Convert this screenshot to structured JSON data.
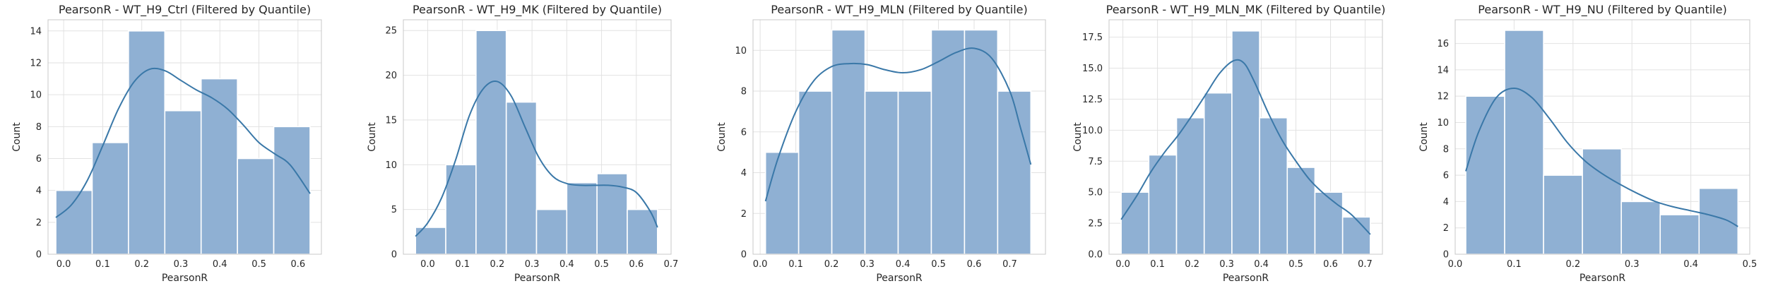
{
  "colors": {
    "bar_fill": "#8fb0d3",
    "bar_edge": "#ffffff",
    "kde_line": "#3a78a8",
    "grid": "#e2e2e2",
    "spine": "#c8c8c8",
    "text": "#262626"
  },
  "chart_data": [
    {
      "type": "bar",
      "subtype": "histogram_with_kde",
      "title": "PearsonR - WT_H9_Ctrl (Filtered by Quantile)",
      "xlabel": "PearsonR",
      "ylabel": "Count",
      "xlim": [
        -0.04,
        0.66
      ],
      "ylim": [
        0,
        14.7
      ],
      "xticks": [
        0.0,
        0.1,
        0.2,
        0.3,
        0.4,
        0.5,
        0.6
      ],
      "xtick_labels": [
        "0.0",
        "0.1",
        "0.2",
        "0.3",
        "0.4",
        "0.5",
        "0.6"
      ],
      "yticks": [
        0,
        2,
        4,
        6,
        8,
        10,
        12,
        14
      ],
      "ytick_labels": [
        "0",
        "2",
        "4",
        "6",
        "8",
        "10",
        "12",
        "14"
      ],
      "bin_edges": [
        -0.02,
        0.073,
        0.166,
        0.259,
        0.352,
        0.445,
        0.538,
        0.631
      ],
      "values": [
        4,
        7,
        14,
        9,
        11,
        6,
        8
      ],
      "kde": [
        [
          -0.02,
          2.3
        ],
        [
          0.02,
          3.1
        ],
        [
          0.06,
          4.6
        ],
        [
          0.1,
          6.8
        ],
        [
          0.14,
          9.1
        ],
        [
          0.18,
          10.8
        ],
        [
          0.22,
          11.6
        ],
        [
          0.26,
          11.5
        ],
        [
          0.3,
          10.9
        ],
        [
          0.34,
          10.3
        ],
        [
          0.38,
          9.8
        ],
        [
          0.42,
          9.1
        ],
        [
          0.46,
          8.1
        ],
        [
          0.5,
          7.0
        ],
        [
          0.54,
          6.3
        ],
        [
          0.58,
          5.6
        ],
        [
          0.631,
          3.8
        ]
      ],
      "grid": true
    },
    {
      "type": "bar",
      "subtype": "histogram_with_kde",
      "title": "PearsonR - WT_H9_MK (Filtered by Quantile)",
      "xlabel": "PearsonR",
      "ylabel": "Count",
      "xlim": [
        -0.07,
        0.7
      ],
      "ylim": [
        0,
        26.2
      ],
      "xticks": [
        0.0,
        0.1,
        0.2,
        0.3,
        0.4,
        0.5,
        0.6,
        0.7
      ],
      "xtick_labels": [
        "0.0",
        "0.1",
        "0.2",
        "0.3",
        "0.4",
        "0.5",
        "0.6",
        "0.7"
      ],
      "yticks": [
        0,
        5,
        10,
        15,
        20,
        25
      ],
      "ytick_labels": [
        "0",
        "5",
        "10",
        "15",
        "20",
        "25"
      ],
      "bin_edges": [
        -0.035,
        0.052,
        0.139,
        0.226,
        0.313,
        0.4,
        0.487,
        0.574,
        0.661
      ],
      "values": [
        3,
        10,
        25,
        17,
        5,
        8,
        9,
        5
      ],
      "kde": [
        [
          -0.035,
          2.0
        ],
        [
          0.0,
          3.5
        ],
        [
          0.04,
          6.3
        ],
        [
          0.08,
          10.5
        ],
        [
          0.12,
          15.5
        ],
        [
          0.16,
          18.5
        ],
        [
          0.2,
          19.3
        ],
        [
          0.24,
          17.7
        ],
        [
          0.28,
          14.2
        ],
        [
          0.32,
          10.8
        ],
        [
          0.36,
          8.7
        ],
        [
          0.4,
          7.9
        ],
        [
          0.44,
          7.7
        ],
        [
          0.48,
          7.7
        ],
        [
          0.52,
          7.7
        ],
        [
          0.56,
          7.5
        ],
        [
          0.6,
          6.9
        ],
        [
          0.64,
          4.8
        ],
        [
          0.661,
          3.0
        ]
      ],
      "grid": true
    },
    {
      "type": "bar",
      "subtype": "histogram_with_kde",
      "title": "PearsonR - WT_H9_MLN (Filtered by Quantile)",
      "xlabel": "PearsonR",
      "ylabel": "Count",
      "xlim": [
        -0.02,
        0.8
      ],
      "ylim": [
        0,
        11.5
      ],
      "xticks": [
        0.0,
        0.1,
        0.2,
        0.3,
        0.4,
        0.5,
        0.6,
        0.7
      ],
      "xtick_labels": [
        "0.0",
        "0.1",
        "0.2",
        "0.3",
        "0.4",
        "0.5",
        "0.6",
        "0.7"
      ],
      "yticks": [
        0,
        2,
        4,
        6,
        8,
        10
      ],
      "ytick_labels": [
        "0",
        "2",
        "4",
        "6",
        "8",
        "10"
      ],
      "bin_edges": [
        0.015,
        0.108,
        0.201,
        0.294,
        0.387,
        0.48,
        0.573,
        0.666,
        0.759
      ],
      "values": [
        5,
        8,
        11,
        8,
        8,
        11,
        11,
        8
      ],
      "kde": [
        [
          0.015,
          2.6
        ],
        [
          0.05,
          4.7
        ],
        [
          0.1,
          7.0
        ],
        [
          0.15,
          8.5
        ],
        [
          0.2,
          9.2
        ],
        [
          0.25,
          9.35
        ],
        [
          0.3,
          9.3
        ],
        [
          0.35,
          9.05
        ],
        [
          0.4,
          8.9
        ],
        [
          0.45,
          9.05
        ],
        [
          0.5,
          9.45
        ],
        [
          0.55,
          9.9
        ],
        [
          0.6,
          10.1
        ],
        [
          0.65,
          9.6
        ],
        [
          0.7,
          8.0
        ],
        [
          0.73,
          6.2
        ],
        [
          0.759,
          4.4
        ]
      ],
      "grid": true
    },
    {
      "type": "bar",
      "subtype": "histogram_with_kde",
      "title": "PearsonR - WT_H9_MLN_MK (Filtered by Quantile)",
      "xlabel": "PearsonR",
      "ylabel": "Count",
      "xlim": [
        -0.04,
        0.75
      ],
      "ylim": [
        0,
        18.9
      ],
      "xticks": [
        0.0,
        0.1,
        0.2,
        0.3,
        0.4,
        0.5,
        0.6,
        0.7
      ],
      "xtick_labels": [
        "0.0",
        "0.1",
        "0.2",
        "0.3",
        "0.4",
        "0.5",
        "0.6",
        "0.7"
      ],
      "yticks": [
        0,
        2.5,
        5,
        7.5,
        10,
        12.5,
        15,
        17.5
      ],
      "ytick_labels": [
        "0.0",
        "2.5",
        "5.0",
        "7.5",
        "10.0",
        "12.5",
        "15.0",
        "17.5"
      ],
      "bin_edges": [
        -0.005,
        0.075,
        0.155,
        0.235,
        0.315,
        0.395,
        0.475,
        0.555,
        0.635,
        0.715
      ],
      "values": [
        5,
        8,
        11,
        13,
        18,
        11,
        7,
        5,
        3
      ],
      "kde": [
        [
          -0.005,
          2.8
        ],
        [
          0.04,
          4.7
        ],
        [
          0.08,
          6.6
        ],
        [
          0.12,
          8.2
        ],
        [
          0.16,
          9.6
        ],
        [
          0.2,
          11.2
        ],
        [
          0.24,
          12.9
        ],
        [
          0.28,
          14.6
        ],
        [
          0.32,
          15.6
        ],
        [
          0.35,
          15.4
        ],
        [
          0.38,
          13.9
        ],
        [
          0.42,
          11.4
        ],
        [
          0.46,
          9.2
        ],
        [
          0.5,
          7.5
        ],
        [
          0.54,
          6.0
        ],
        [
          0.58,
          4.9
        ],
        [
          0.62,
          4.0
        ],
        [
          0.66,
          3.2
        ],
        [
          0.715,
          1.6
        ]
      ],
      "grid": true
    },
    {
      "type": "bar",
      "subtype": "histogram_with_kde",
      "title": "PearsonR - WT_H9_NU (Filtered by Quantile)",
      "xlabel": "PearsonR",
      "ylabel": "Count",
      "xlim": [
        0.0,
        0.5
      ],
      "ylim": [
        0,
        17.8
      ],
      "xticks": [
        0.0,
        0.1,
        0.2,
        0.3,
        0.4,
        0.5
      ],
      "xtick_labels": [
        "0.0",
        "0.1",
        "0.2",
        "0.3",
        "0.4",
        "0.5"
      ],
      "yticks": [
        0,
        2,
        4,
        6,
        8,
        10,
        12,
        14,
        16
      ],
      "ytick_labels": [
        "0",
        "2",
        "4",
        "6",
        "8",
        "10",
        "12",
        "14",
        "16"
      ],
      "bin_edges": [
        0.018,
        0.084,
        0.15,
        0.216,
        0.282,
        0.348,
        0.414,
        0.48
      ],
      "values": [
        12,
        17,
        6,
        8,
        4,
        3,
        5
      ],
      "kde": [
        [
          0.018,
          6.3
        ],
        [
          0.04,
          9.3
        ],
        [
          0.07,
          11.9
        ],
        [
          0.1,
          12.6
        ],
        [
          0.13,
          11.9
        ],
        [
          0.16,
          10.3
        ],
        [
          0.19,
          8.5
        ],
        [
          0.22,
          7.1
        ],
        [
          0.25,
          6.1
        ],
        [
          0.28,
          5.3
        ],
        [
          0.31,
          4.6
        ],
        [
          0.34,
          4.0
        ],
        [
          0.37,
          3.6
        ],
        [
          0.4,
          3.3
        ],
        [
          0.43,
          3.0
        ],
        [
          0.46,
          2.6
        ],
        [
          0.48,
          2.1
        ]
      ],
      "grid": true
    }
  ]
}
